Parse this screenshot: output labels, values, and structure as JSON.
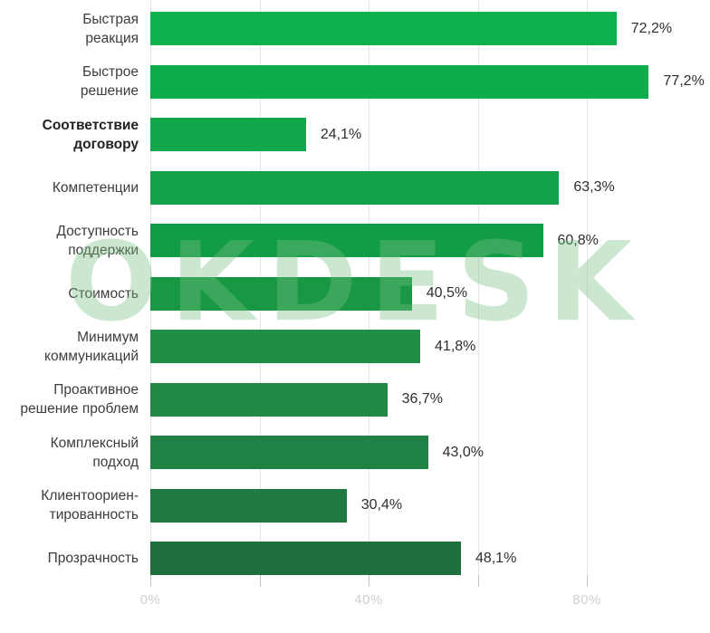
{
  "watermark": {
    "text": "OKDESK",
    "color": "rgba(118, 192, 131, 0.38)"
  },
  "chart_data": {
    "type": "bar",
    "orientation": "horizontal",
    "title": "",
    "xlabel": "",
    "ylabel": "",
    "grid": true,
    "legend": false,
    "value_suffix": "%",
    "decimal_separator": ",",
    "categories": [
      "Быстрая\nреакция",
      "Быстрое\nрешение",
      "Соответствие\nдоговору",
      "Компетенции",
      "Доступность\nподдержки",
      "Стоимость",
      "Минимум\nкоммуникаций",
      "Проактивное\nрешение проблем",
      "Комплексный\nподход",
      "Клиентоориен-\nтированность",
      "Прозрачность"
    ],
    "values": [
      72.2,
      77.2,
      24.1,
      63.3,
      60.8,
      40.5,
      41.8,
      36.7,
      43.0,
      30.4,
      48.1
    ],
    "value_labels": [
      "72,2%",
      "77,2%",
      "24,1%",
      "63,3%",
      "60,8%",
      "40,5%",
      "41,8%",
      "36,7%",
      "43,0%",
      "30,4%",
      "48,1%"
    ],
    "bold_category_indices": [
      2
    ],
    "bar_colors": [
      "#0fb14d",
      "#0fac4b",
      "#10a84b",
      "#13a249",
      "#129c46",
      "#189745",
      "#1f8f47",
      "#1f8945",
      "#1f8143",
      "#1e7a40",
      "#1d6f3c"
    ],
    "x_axis": {
      "range_pct": [
        0,
        80
      ],
      "tick_positions_pct": [
        0,
        20,
        40,
        60,
        80
      ],
      "tick_labels": [
        "0%",
        "",
        "40%",
        "",
        "80%"
      ],
      "tick_label_color": "#cfcfcf",
      "gridline_color": "#e5e5e5"
    }
  }
}
